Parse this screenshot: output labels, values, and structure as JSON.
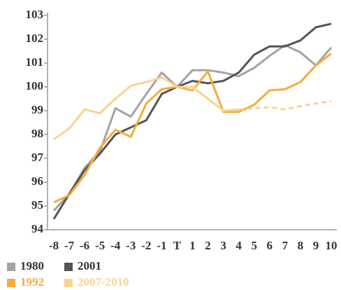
{
  "chart_data": {
    "type": "line",
    "categories": [
      "-8",
      "-7",
      "-6",
      "-5",
      "-4",
      "-3",
      "-2",
      "-1",
      "T",
      "1",
      "2",
      "3",
      "4",
      "5",
      "6",
      "7",
      "8",
      "9",
      "10"
    ],
    "series": [
      {
        "name": "1980",
        "color": "#a3a3a3",
        "values": [
          94.8,
          95.5,
          96.6,
          97.3,
          99.1,
          98.75,
          99.7,
          100.6,
          100.0,
          100.7,
          100.7,
          100.6,
          100.45,
          100.8,
          101.3,
          101.75,
          101.45,
          100.9,
          101.65
        ]
      },
      {
        "name": "2001",
        "color": "#555555",
        "values": [
          94.45,
          95.5,
          96.5,
          97.2,
          98.0,
          98.3,
          98.6,
          99.7,
          100.0,
          100.25,
          100.15,
          100.25,
          100.6,
          101.35,
          101.7,
          101.7,
          101.95,
          102.5,
          102.65
        ]
      },
      {
        "name": "1992",
        "color": "#f5ac3c",
        "values": [
          95.15,
          95.45,
          96.3,
          97.45,
          98.2,
          97.9,
          99.3,
          99.9,
          100.0,
          99.85,
          100.65,
          98.95,
          98.95,
          99.25,
          99.85,
          99.9,
          100.2,
          100.9,
          101.4
        ]
      },
      {
        "name": "2007-2010",
        "color": "#f9d48f",
        "dashed_from": 12,
        "values": [
          97.8,
          98.25,
          99.05,
          98.9,
          99.5,
          100.05,
          100.2,
          100.4,
          100.0,
          100.0,
          99.5,
          99.0,
          99.05,
          99.1,
          99.15,
          99.05,
          99.2,
          99.3,
          99.4
        ]
      }
    ],
    "ylim": [
      94,
      103
    ],
    "yticks": [
      94,
      95,
      96,
      97,
      98,
      99,
      100,
      101,
      102,
      103
    ],
    "legend": "bottom"
  }
}
